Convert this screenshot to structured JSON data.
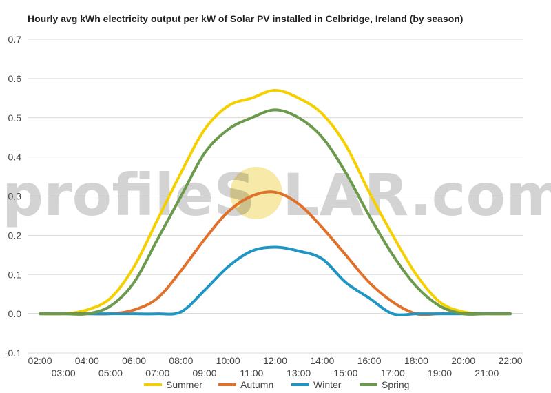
{
  "chart_data": {
    "type": "line",
    "title": "Hourly avg kWh electricity output per kW of Solar PV installed in Celbridge, Ireland (by season)",
    "xlabel": "",
    "ylabel": "",
    "ylim": [
      -0.1,
      0.7
    ],
    "yticks": [
      -0.1,
      0.0,
      0.1,
      0.2,
      0.3,
      0.4,
      0.5,
      0.6,
      0.7
    ],
    "ytick_labels": [
      "-0.1",
      "0.0",
      "0.1",
      "0.2",
      "0.3",
      "0.4",
      "0.5",
      "0.6",
      "0.7"
    ],
    "x": [
      "02:00",
      "03:00",
      "04:00",
      "05:00",
      "06:00",
      "07:00",
      "08:00",
      "09:00",
      "10:00",
      "11:00",
      "12:00",
      "13:00",
      "14:00",
      "15:00",
      "16:00",
      "17:00",
      "18:00",
      "19:00",
      "20:00",
      "21:00",
      "22:00"
    ],
    "grid": true,
    "legend": "bottom",
    "series": [
      {
        "name": "Summer",
        "color": "#f5d000",
        "values": [
          0,
          0,
          0.01,
          0.04,
          0.12,
          0.24,
          0.36,
          0.47,
          0.53,
          0.55,
          0.57,
          0.55,
          0.51,
          0.43,
          0.31,
          0.2,
          0.1,
          0.03,
          0.005,
          0,
          0
        ]
      },
      {
        "name": "Autumn",
        "color": "#e0712a",
        "values": [
          0,
          0,
          0,
          0,
          0.01,
          0.04,
          0.11,
          0.19,
          0.26,
          0.3,
          0.31,
          0.28,
          0.22,
          0.15,
          0.08,
          0.03,
          0,
          0,
          0,
          0,
          0
        ]
      },
      {
        "name": "Winter",
        "color": "#1f95c4",
        "values": [
          0,
          0,
          0,
          0,
          0,
          0,
          0.005,
          0.06,
          0.12,
          0.16,
          0.17,
          0.16,
          0.14,
          0.08,
          0.04,
          0,
          0,
          0,
          0,
          0,
          0
        ]
      },
      {
        "name": "Spring",
        "color": "#6b9a4c",
        "values": [
          0,
          0,
          0,
          0.02,
          0.08,
          0.19,
          0.3,
          0.41,
          0.47,
          0.5,
          0.52,
          0.5,
          0.45,
          0.36,
          0.25,
          0.15,
          0.07,
          0.02,
          0,
          0,
          0
        ]
      }
    ]
  },
  "watermark": {
    "text_left": "profileS",
    "text_right": "LAR.com",
    "sun_color": "#f7e9a8"
  }
}
